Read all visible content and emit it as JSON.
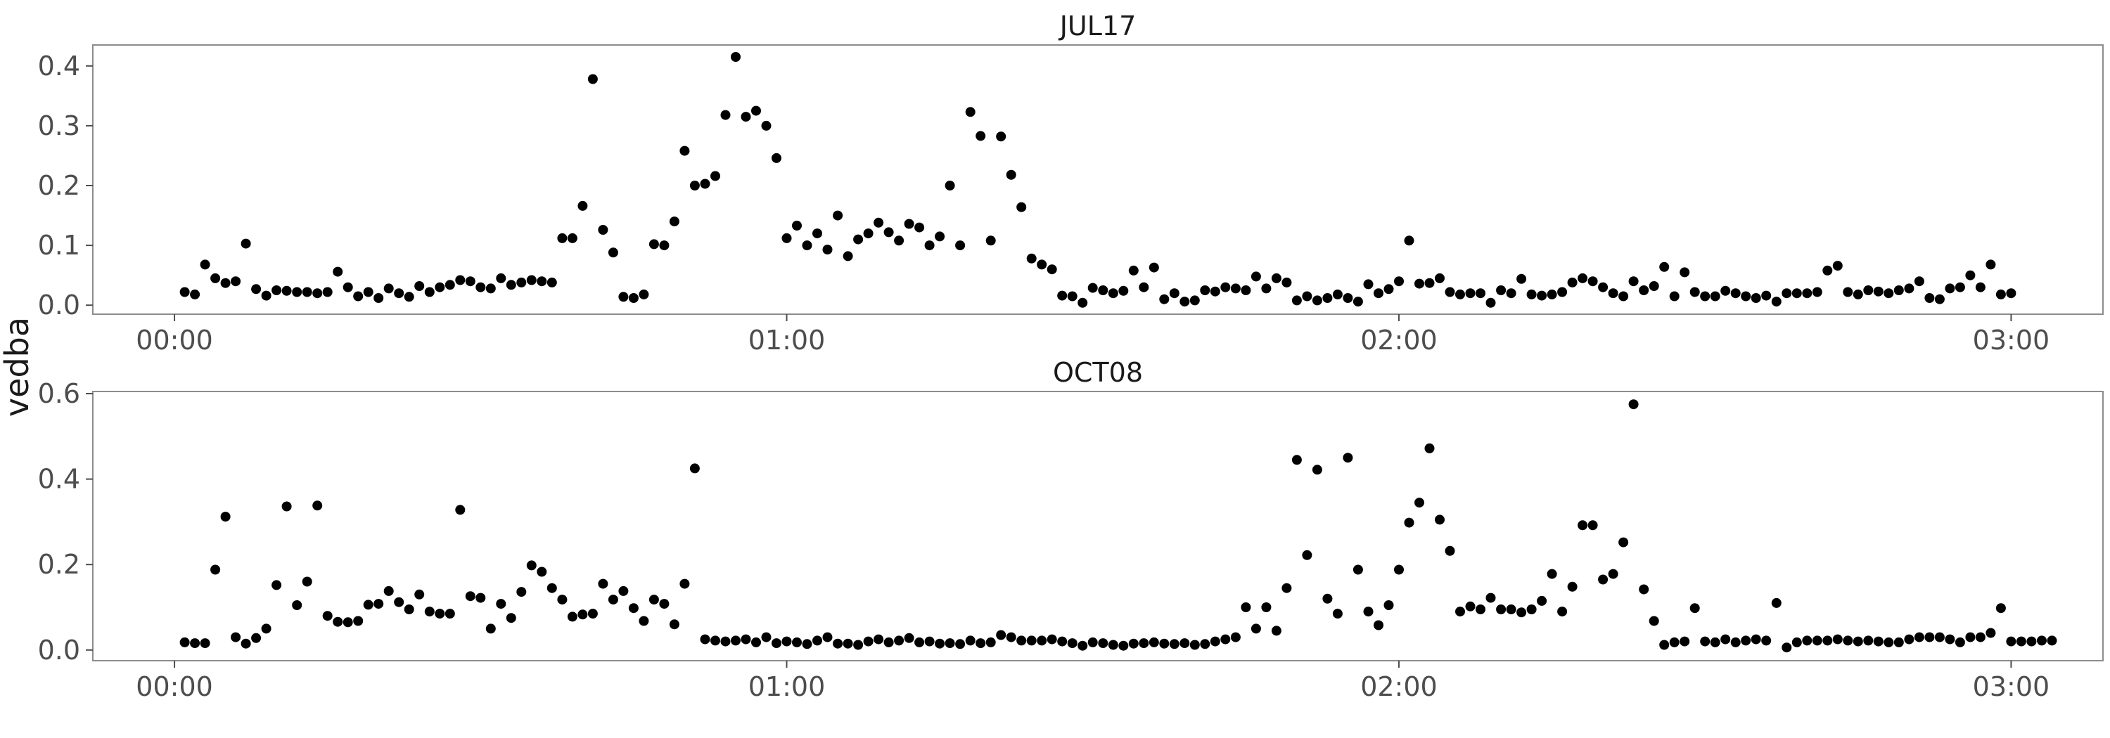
{
  "chart_data": {
    "type": "scatter",
    "ylabel": "vedba",
    "xlabel": "",
    "grid": false,
    "point_color": "#000000",
    "x_unit_note": "x values are clock times in HH:MM, sampled every minute",
    "panels": [
      {
        "title": "JUL17",
        "xlim": [
          "-00:08",
          "03:09"
        ],
        "ylim": [
          -0.015,
          0.435
        ],
        "x_ticks": [
          "00:00",
          "01:00",
          "02:00",
          "03:00"
        ],
        "y_ticks": [
          "0.0",
          "0.1",
          "0.2",
          "0.3",
          "0.4"
        ],
        "x_start": "00:01",
        "x_step_minutes": 1,
        "values": [
          0.022,
          0.018,
          0.068,
          0.045,
          0.037,
          0.04,
          0.103,
          0.027,
          0.016,
          0.025,
          0.024,
          0.022,
          0.022,
          0.02,
          0.022,
          0.056,
          0.03,
          0.015,
          0.022,
          0.012,
          0.028,
          0.02,
          0.014,
          0.032,
          0.022,
          0.03,
          0.034,
          0.042,
          0.04,
          0.03,
          0.028,
          0.045,
          0.034,
          0.038,
          0.042,
          0.04,
          0.038,
          0.112,
          0.112,
          0.166,
          0.378,
          0.126,
          0.088,
          0.014,
          0.012,
          0.018,
          0.102,
          0.1,
          0.14,
          0.258,
          0.2,
          0.203,
          0.216,
          0.318,
          0.415,
          0.315,
          0.325,
          0.3,
          0.246,
          0.112,
          0.133,
          0.1,
          0.12,
          0.093,
          0.15,
          0.082,
          0.11,
          0.12,
          0.138,
          0.122,
          0.108,
          0.136,
          0.13,
          0.1,
          0.115,
          0.2,
          0.1,
          0.323,
          0.283,
          0.108,
          0.282,
          0.218,
          0.164,
          0.078,
          0.068,
          0.06,
          0.016,
          0.015,
          0.004,
          0.029,
          0.025,
          0.02,
          0.024,
          0.058,
          0.03,
          0.063,
          0.01,
          0.02,
          0.006,
          0.008,
          0.025,
          0.023,
          0.03,
          0.028,
          0.025,
          0.048,
          0.028,
          0.045,
          0.038,
          0.008,
          0.015,
          0.008,
          0.012,
          0.018,
          0.012,
          0.006,
          0.035,
          0.02,
          0.027,
          0.04,
          0.108,
          0.036,
          0.037,
          0.045,
          0.022,
          0.018,
          0.02,
          0.02,
          0.004,
          0.025,
          0.02,
          0.044,
          0.018,
          0.016,
          0.018,
          0.022,
          0.038,
          0.045,
          0.04,
          0.03,
          0.02,
          0.015,
          0.04,
          0.025,
          0.032,
          0.064,
          0.015,
          0.055,
          0.022,
          0.015,
          0.015,
          0.024,
          0.02,
          0.015,
          0.012,
          0.016,
          0.006,
          0.02,
          0.02,
          0.02,
          0.022,
          0.058,
          0.066,
          0.022,
          0.018,
          0.025,
          0.023,
          0.02,
          0.025,
          0.028,
          0.04,
          0.012,
          0.01,
          0.028,
          0.03,
          0.05,
          0.03,
          0.068,
          0.018,
          0.02
        ]
      },
      {
        "title": "OCT08",
        "xlim": [
          "-00:08",
          "03:09"
        ],
        "ylim": [
          -0.025,
          0.605
        ],
        "x_ticks": [
          "00:00",
          "01:00",
          "02:00",
          "03:00"
        ],
        "y_ticks": [
          "0.0",
          "0.2",
          "0.4",
          "0.6"
        ],
        "x_start": "00:01",
        "x_step_minutes": 1,
        "values": [
          0.018,
          0.016,
          0.016,
          0.188,
          0.312,
          0.03,
          0.015,
          0.028,
          0.05,
          0.152,
          0.336,
          0.105,
          0.16,
          0.338,
          0.08,
          0.066,
          0.065,
          0.068,
          0.106,
          0.108,
          0.138,
          0.112,
          0.095,
          0.13,
          0.09,
          0.085,
          0.085,
          0.328,
          0.126,
          0.122,
          0.05,
          0.108,
          0.075,
          0.136,
          0.198,
          0.183,
          0.145,
          0.118,
          0.078,
          0.083,
          0.085,
          0.155,
          0.118,
          0.138,
          0.098,
          0.068,
          0.118,
          0.108,
          0.06,
          0.155,
          0.425,
          0.025,
          0.022,
          0.02,
          0.022,
          0.025,
          0.018,
          0.03,
          0.016,
          0.02,
          0.018,
          0.014,
          0.022,
          0.03,
          0.015,
          0.015,
          0.012,
          0.02,
          0.025,
          0.018,
          0.022,
          0.028,
          0.018,
          0.02,
          0.015,
          0.016,
          0.014,
          0.022,
          0.016,
          0.018,
          0.035,
          0.03,
          0.022,
          0.022,
          0.022,
          0.025,
          0.02,
          0.016,
          0.01,
          0.018,
          0.016,
          0.012,
          0.01,
          0.015,
          0.016,
          0.018,
          0.015,
          0.014,
          0.016,
          0.012,
          0.014,
          0.02,
          0.025,
          0.03,
          0.1,
          0.05,
          0.1,
          0.045,
          0.145,
          0.445,
          0.222,
          0.422,
          0.12,
          0.085,
          0.45,
          0.188,
          0.09,
          0.058,
          0.105,
          0.188,
          0.298,
          0.345,
          0.472,
          0.305,
          0.232,
          0.09,
          0.102,
          0.095,
          0.122,
          0.095,
          0.095,
          0.088,
          0.095,
          0.115,
          0.178,
          0.09,
          0.148,
          0.292,
          0.292,
          0.165,
          0.178,
          0.252,
          0.575,
          0.142,
          0.068,
          0.012,
          0.018,
          0.02,
          0.098,
          0.02,
          0.018,
          0.025,
          0.018,
          0.022,
          0.025,
          0.022,
          0.11,
          0.006,
          0.018,
          0.022,
          0.022,
          0.022,
          0.025,
          0.022,
          0.02,
          0.022,
          0.02,
          0.018,
          0.018,
          0.025,
          0.03,
          0.03,
          0.03,
          0.025,
          0.018,
          0.03,
          0.03,
          0.04,
          0.098,
          0.02,
          0.02,
          0.02,
          0.022,
          0.022
        ]
      }
    ]
  }
}
